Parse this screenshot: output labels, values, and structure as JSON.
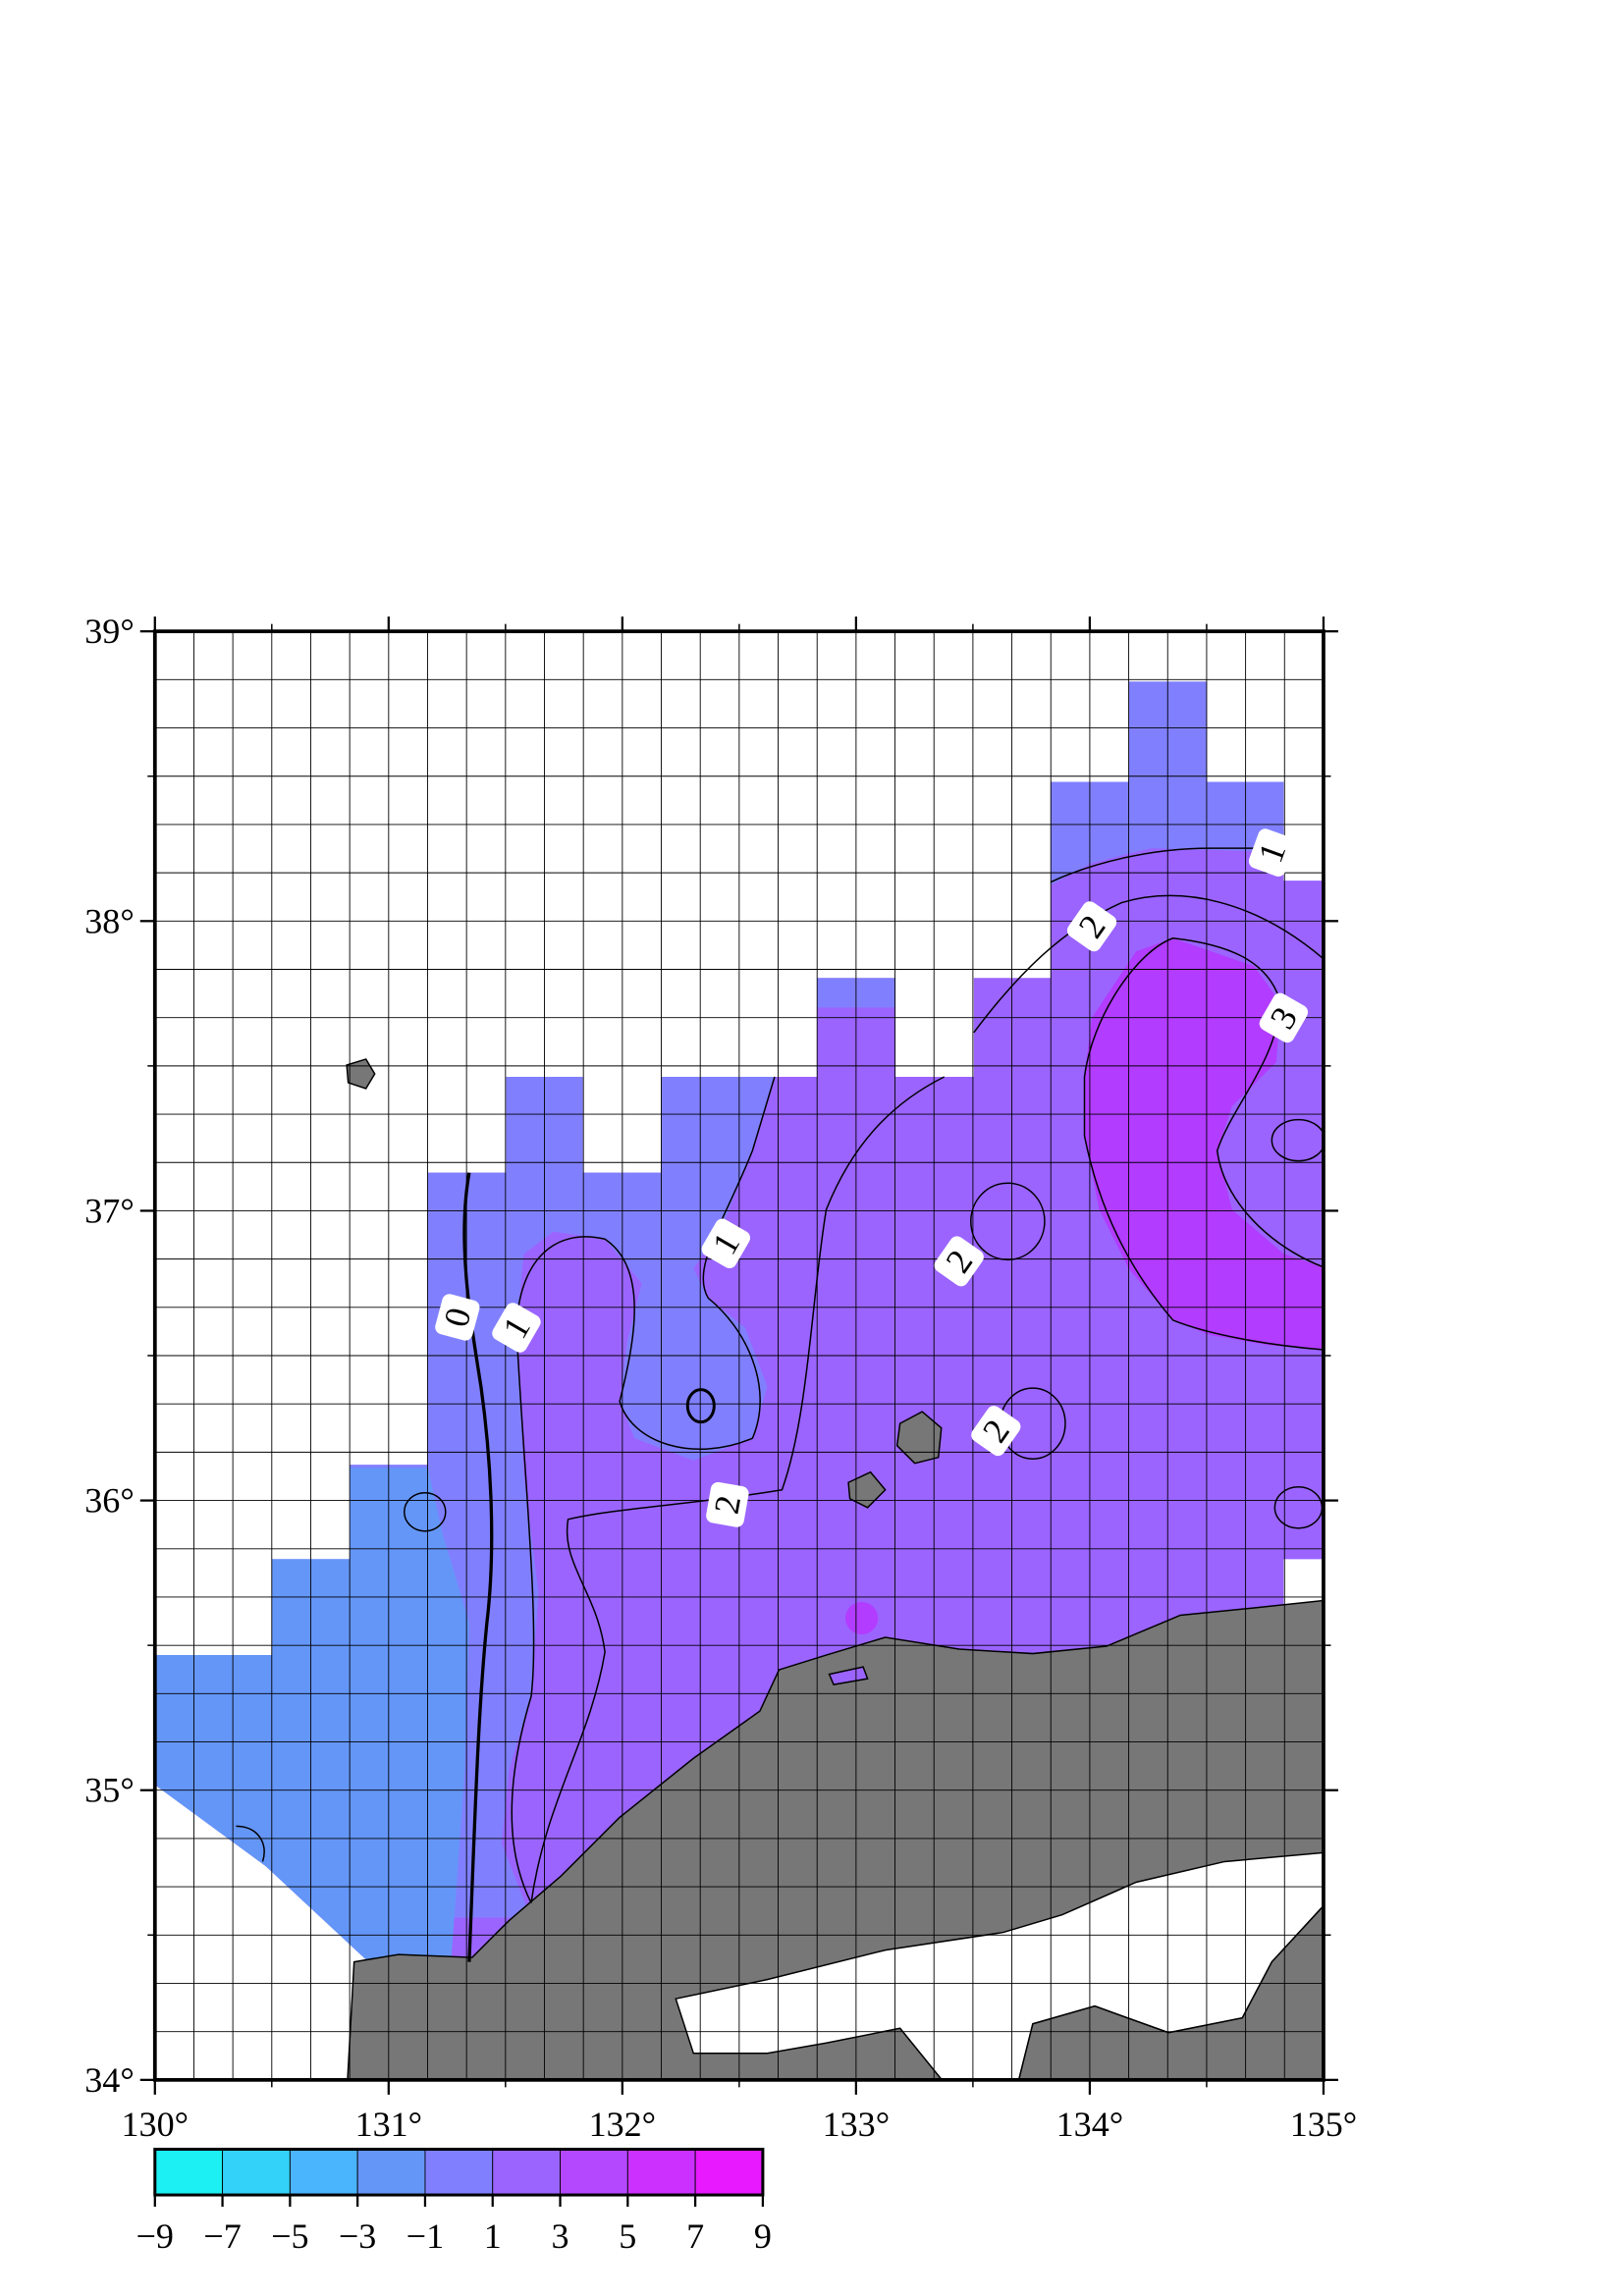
{
  "map": {
    "xlim": [
      130,
      135
    ],
    "ylim": [
      34,
      39
    ],
    "xticks": [
      {
        "value": 130,
        "label": "130°"
      },
      {
        "value": 131,
        "label": "131°"
      },
      {
        "value": 132,
        "label": "132°"
      },
      {
        "value": 133,
        "label": "133°"
      },
      {
        "value": 134,
        "label": "134°"
      },
      {
        "value": 135,
        "label": "135°"
      }
    ],
    "yticks": [
      {
        "value": 34,
        "label": "34°"
      },
      {
        "value": 35,
        "label": "35°"
      },
      {
        "value": 36,
        "label": "36°"
      },
      {
        "value": 37,
        "label": "37°"
      },
      {
        "value": 38,
        "label": "38°"
      },
      {
        "value": 39,
        "label": "39°"
      }
    ],
    "contour_labels": [
      0,
      1,
      1,
      1,
      2,
      2,
      2,
      2,
      3
    ]
  },
  "colorbar": {
    "ticks": [
      {
        "value": -9,
        "label": "−9"
      },
      {
        "value": -7,
        "label": "−7"
      },
      {
        "value": -5,
        "label": "−5"
      },
      {
        "value": -3,
        "label": "−3"
      },
      {
        "value": -1,
        "label": "−1"
      },
      1,
      3,
      5,
      7,
      9
    ],
    "colors": [
      "#1cf0f2",
      "#33d2f8",
      "#4ab4fc",
      "#6496f8",
      "#8080ff",
      "#9b64ff",
      "#b448ff",
      "#cc30ff",
      "#e818ff"
    ]
  }
}
